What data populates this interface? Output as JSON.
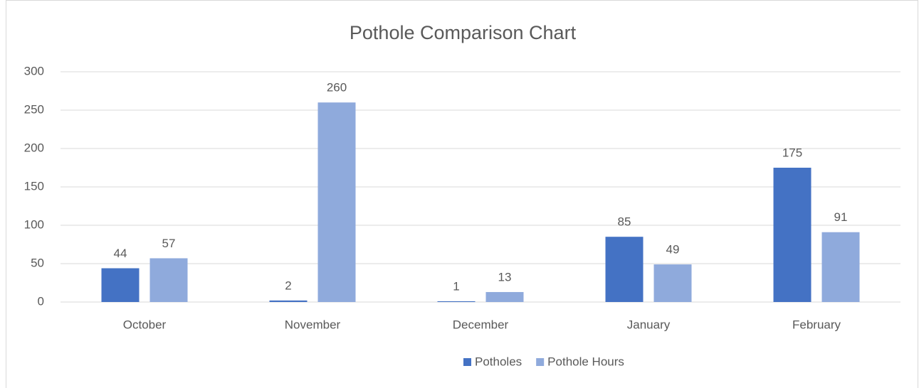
{
  "chart_data": {
    "type": "bar",
    "title": "Pothole Comparison Chart",
    "categories": [
      "October",
      "November",
      "December",
      "January",
      "February"
    ],
    "series": [
      {
        "name": "Potholes",
        "color": "#4472c4",
        "values": [
          44,
          2,
          1,
          85,
          175
        ]
      },
      {
        "name": "Pothole Hours",
        "color": "#8faadc",
        "values": [
          57,
          260,
          13,
          49,
          91
        ]
      }
    ],
    "ylim": [
      0,
      300
    ],
    "yticks": [
      0,
      50,
      100,
      150,
      200,
      250,
      300
    ],
    "grid": true,
    "legend": "bottom"
  }
}
